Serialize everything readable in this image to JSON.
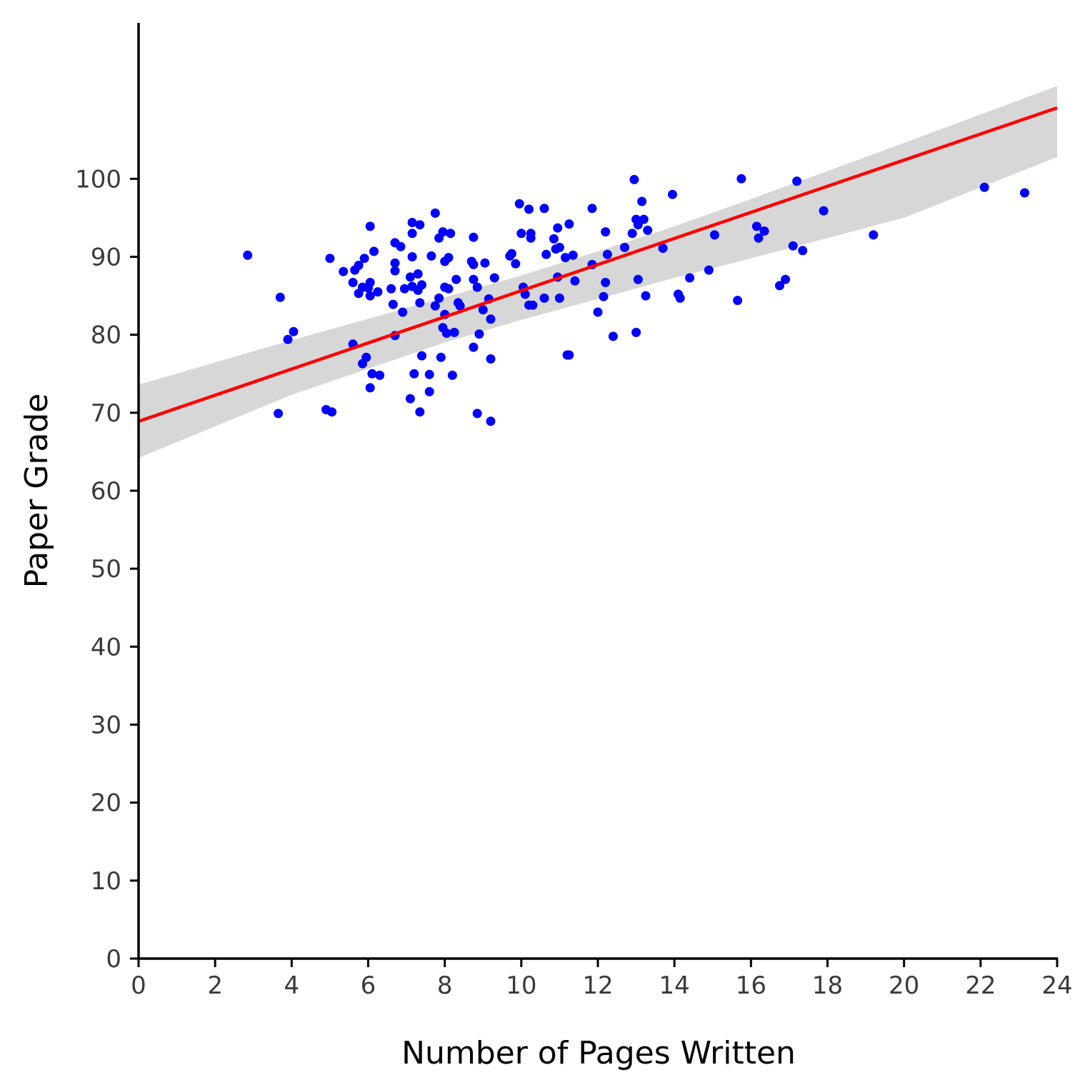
{
  "chart_data": {
    "type": "scatter",
    "title": "",
    "xlabel": "Number of Pages Written",
    "ylabel": "Paper Grade",
    "xlim": [
      0,
      24
    ],
    "ylim": [
      0,
      120
    ],
    "x_ticks": [
      0,
      2,
      4,
      6,
      8,
      10,
      12,
      14,
      16,
      18,
      20,
      22,
      24
    ],
    "y_ticks": [
      0,
      10,
      20,
      30,
      40,
      50,
      60,
      70,
      80,
      90,
      100
    ],
    "grid": false,
    "legend": "none",
    "colors": {
      "points": "#0000ff",
      "fit_line": "#ff0000",
      "confidence_band": "#d0d0d0",
      "axis": "#000000"
    },
    "series": [
      {
        "type": "scatter",
        "points": [
          [
            2.85,
            90.2
          ],
          [
            3.65,
            69.9
          ],
          [
            3.7,
            84.8
          ],
          [
            3.9,
            79.4
          ],
          [
            4.05,
            80.4
          ],
          [
            4.9,
            70.4
          ],
          [
            5.0,
            89.8
          ],
          [
            5.05,
            70.1
          ],
          [
            5.35,
            88.1
          ],
          [
            5.6,
            78.8
          ],
          [
            5.6,
            86.7
          ],
          [
            5.65,
            88.3
          ],
          [
            5.75,
            88.9
          ],
          [
            5.75,
            85.3
          ],
          [
            5.85,
            86.1
          ],
          [
            5.85,
            76.3
          ],
          [
            5.9,
            89.8
          ],
          [
            5.95,
            77.1
          ],
          [
            6.0,
            86.0
          ],
          [
            6.05,
            93.9
          ],
          [
            6.05,
            85.0
          ],
          [
            6.05,
            86.7
          ],
          [
            6.05,
            73.2
          ],
          [
            6.1,
            75.0
          ],
          [
            6.15,
            90.7
          ],
          [
            6.25,
            85.5
          ],
          [
            6.3,
            74.8
          ],
          [
            6.6,
            85.9
          ],
          [
            6.65,
            83.9
          ],
          [
            6.7,
            89.2
          ],
          [
            6.7,
            88.2
          ],
          [
            6.7,
            91.8
          ],
          [
            6.7,
            79.9
          ],
          [
            6.85,
            91.3
          ],
          [
            6.9,
            82.9
          ],
          [
            6.95,
            85.9
          ],
          [
            7.1,
            87.4
          ],
          [
            7.1,
            71.8
          ],
          [
            7.15,
            86.2
          ],
          [
            7.15,
            90.0
          ],
          [
            7.15,
            94.4
          ],
          [
            7.15,
            93.0
          ],
          [
            7.2,
            75.0
          ],
          [
            7.3,
            85.7
          ],
          [
            7.3,
            87.8
          ],
          [
            7.35,
            84.1
          ],
          [
            7.35,
            94.1
          ],
          [
            7.35,
            70.1
          ],
          [
            7.4,
            77.3
          ],
          [
            7.4,
            86.4
          ],
          [
            7.6,
            74.9
          ],
          [
            7.6,
            72.7
          ],
          [
            7.65,
            90.1
          ],
          [
            7.75,
            95.6
          ],
          [
            7.75,
            83.7
          ],
          [
            7.85,
            92.4
          ],
          [
            7.85,
            84.7
          ],
          [
            7.9,
            77.1
          ],
          [
            7.95,
            93.2
          ],
          [
            7.95,
            80.9
          ],
          [
            8.0,
            89.4
          ],
          [
            8.0,
            86.1
          ],
          [
            8.0,
            82.6
          ],
          [
            8.05,
            80.2
          ],
          [
            8.1,
            85.9
          ],
          [
            8.1,
            89.9
          ],
          [
            8.15,
            93.0
          ],
          [
            8.2,
            74.8
          ],
          [
            8.25,
            80.3
          ],
          [
            8.3,
            87.1
          ],
          [
            8.35,
            84.1
          ],
          [
            8.4,
            83.7
          ],
          [
            8.7,
            89.4
          ],
          [
            8.75,
            87.1
          ],
          [
            8.75,
            92.5
          ],
          [
            8.75,
            78.4
          ],
          [
            8.75,
            89.0
          ],
          [
            8.85,
            86.1
          ],
          [
            8.85,
            69.9
          ],
          [
            8.9,
            80.1
          ],
          [
            9.0,
            83.2
          ],
          [
            9.05,
            89.2
          ],
          [
            9.15,
            84.6
          ],
          [
            9.2,
            82.0
          ],
          [
            9.2,
            76.9
          ],
          [
            9.2,
            68.9
          ],
          [
            9.3,
            87.3
          ],
          [
            9.7,
            90.1
          ],
          [
            9.75,
            90.4
          ],
          [
            9.85,
            89.1
          ],
          [
            9.95,
            96.8
          ],
          [
            10.0,
            93.0
          ],
          [
            10.05,
            86.1
          ],
          [
            10.1,
            85.2
          ],
          [
            10.2,
            96.1
          ],
          [
            10.2,
            83.8
          ],
          [
            10.25,
            93.0
          ],
          [
            10.25,
            92.4
          ],
          [
            10.3,
            83.8
          ],
          [
            10.6,
            96.2
          ],
          [
            10.6,
            84.7
          ],
          [
            10.65,
            90.3
          ],
          [
            10.85,
            92.3
          ],
          [
            10.9,
            91.0
          ],
          [
            10.95,
            87.4
          ],
          [
            10.95,
            93.7
          ],
          [
            11.0,
            91.2
          ],
          [
            11.0,
            84.7
          ],
          [
            11.15,
            89.9
          ],
          [
            11.2,
            77.4
          ],
          [
            11.25,
            77.4
          ],
          [
            11.25,
            94.2
          ],
          [
            11.35,
            90.2
          ],
          [
            11.4,
            86.9
          ],
          [
            11.85,
            96.2
          ],
          [
            11.85,
            89.0
          ],
          [
            12.0,
            82.9
          ],
          [
            12.15,
            84.9
          ],
          [
            12.2,
            93.2
          ],
          [
            12.2,
            86.7
          ],
          [
            12.25,
            90.3
          ],
          [
            12.4,
            79.8
          ],
          [
            12.7,
            91.2
          ],
          [
            12.9,
            93.0
          ],
          [
            12.95,
            99.9
          ],
          [
            13.0,
            94.8
          ],
          [
            13.0,
            80.3
          ],
          [
            13.05,
            94.1
          ],
          [
            13.05,
            87.1
          ],
          [
            13.15,
            97.1
          ],
          [
            13.2,
            94.8
          ],
          [
            13.25,
            85.0
          ],
          [
            13.3,
            93.4
          ],
          [
            13.7,
            91.1
          ],
          [
            13.95,
            98.0
          ],
          [
            14.1,
            85.2
          ],
          [
            14.15,
            84.7
          ],
          [
            14.4,
            87.3
          ],
          [
            14.9,
            88.3
          ],
          [
            15.05,
            92.8
          ],
          [
            15.65,
            84.4
          ],
          [
            15.75,
            100.0
          ],
          [
            16.15,
            93.9
          ],
          [
            16.2,
            92.4
          ],
          [
            16.35,
            93.3
          ],
          [
            16.75,
            86.3
          ],
          [
            16.9,
            87.1
          ],
          [
            17.1,
            91.4
          ],
          [
            17.2,
            99.7
          ],
          [
            17.35,
            90.8
          ],
          [
            17.9,
            95.9
          ],
          [
            19.2,
            92.8
          ],
          [
            22.1,
            98.9
          ],
          [
            23.15,
            98.2
          ]
        ]
      },
      {
        "type": "line",
        "x": [
          0,
          24
        ],
        "y": [
          68.9,
          109.1
        ]
      },
      {
        "type": "area",
        "x": [
          0,
          4,
          8,
          10,
          12,
          14,
          16,
          20,
          24
        ],
        "upper": [
          73.6,
          79.3,
          84.8,
          87.6,
          90.7,
          93.9,
          97.4,
          104.6,
          111.9
        ],
        "lower": [
          64.2,
          72.3,
          79.0,
          81.9,
          84.6,
          87.3,
          89.8,
          95.0,
          102.8
        ]
      }
    ]
  }
}
